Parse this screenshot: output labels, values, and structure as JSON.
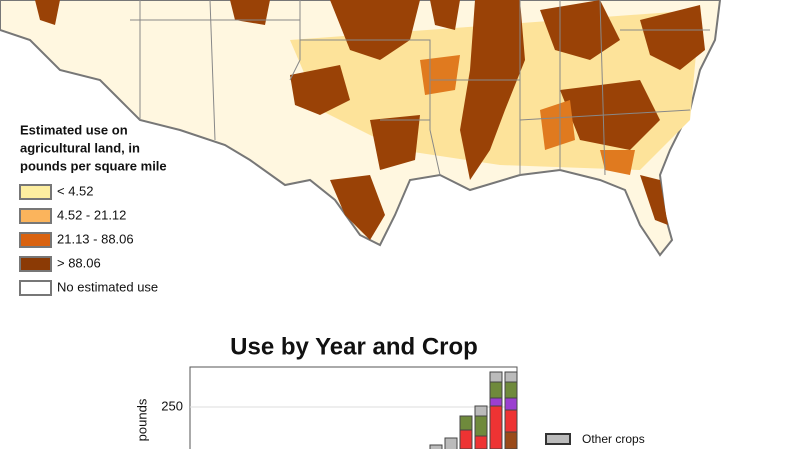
{
  "map": {
    "legend": {
      "title_lines": [
        "Estimated use on",
        "agricultural land, in",
        "pounds per square mile"
      ],
      "items": [
        {
          "label": "< 4.52",
          "color": "#fdeea0"
        },
        {
          "label": "4.52 - 21.12",
          "color": "#fbb45c"
        },
        {
          "label": "21.13 - 88.06",
          "color": "#d9620f"
        },
        {
          "label": "> 88.06",
          "color": "#8b3a05"
        },
        {
          "label": "No estimated use",
          "color": "#ffffff"
        }
      ]
    }
  },
  "chart_data": {
    "type": "bar",
    "title": "Use by Year and Crop",
    "y_label": "pounds",
    "yticks": [
      250
    ],
    "legend": [
      "Other crops"
    ]
  }
}
